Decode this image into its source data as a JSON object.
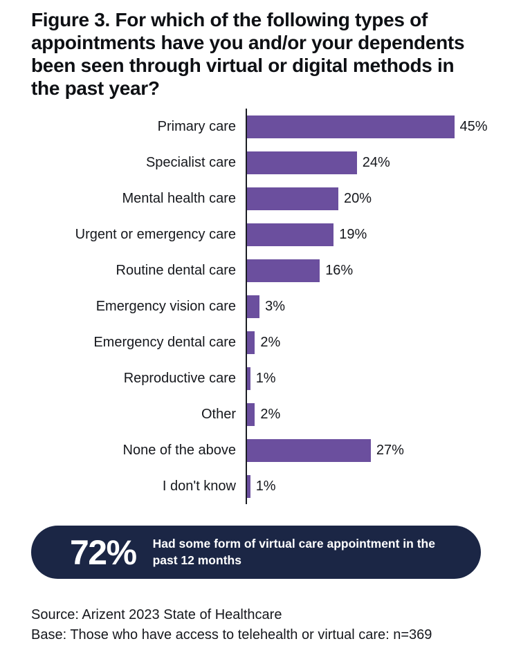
{
  "title": "Figure 3. For which of the following types of appointments have you and/or your dependents been seen through virtual or digital methods in the past year?",
  "chart_data": {
    "type": "bar",
    "orientation": "horizontal",
    "title": "Figure 3. For which of the following types of appointments have you and/or your dependents been seen through virtual or digital methods in the past year?",
    "categories": [
      "Primary care",
      "Specialist care",
      "Mental health care",
      "Urgent or emergency care",
      "Routine dental care",
      "Emergency vision care",
      "Emergency dental care",
      "Reproductive care",
      "Other",
      "None of the above",
      "I don't know"
    ],
    "values": [
      45,
      24,
      20,
      19,
      16,
      3,
      2,
      1,
      2,
      27,
      1
    ],
    "value_labels": [
      "45%",
      "24%",
      "20%",
      "19%",
      "16%",
      "3%",
      "2%",
      "1%",
      "2%",
      "27%",
      "1%"
    ],
    "xlabel": "",
    "ylabel": "",
    "xlim": [
      0,
      47
    ],
    "grid": false,
    "legend": false,
    "bar_color": "#6B4F9E",
    "axis_color": "#1A1C22"
  },
  "callout": {
    "stat": "72%",
    "text": "Had some form of virtual care appointment in the past 12 months",
    "background": "#1B2645"
  },
  "footer": {
    "source": "Source: Arizent 2023 State of Healthcare",
    "base": "Base: Those who have access to telehealth or virtual care: n=369"
  }
}
